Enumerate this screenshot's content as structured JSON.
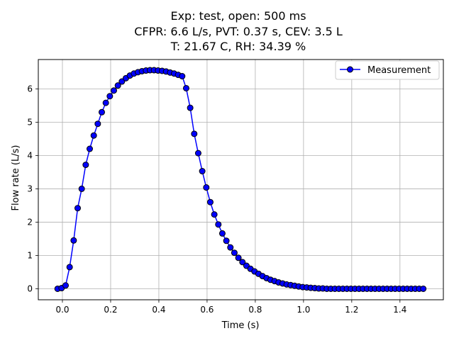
{
  "figure": {
    "title_lines": [
      "Exp: test, open: 500 ms",
      "CFPR: 6.6 L/s, PVT: 0.37 s, CEV: 3.5 L",
      "T: 21.67 C, RH: 34.39 %"
    ]
  },
  "chart_data": {
    "type": "line",
    "xlabel": "Time (s)",
    "ylabel": "Flow rate (L/s)",
    "xlim": [
      -0.1,
      1.58
    ],
    "ylim": [
      -0.33,
      6.88
    ],
    "xticks": [
      0.0,
      0.2,
      0.4,
      0.6,
      0.8,
      1.0,
      1.2,
      1.4
    ],
    "xtick_labels": [
      "0.0",
      "0.2",
      "0.4",
      "0.6",
      "0.8",
      "1.0",
      "1.2",
      "1.4"
    ],
    "yticks": [
      0,
      1,
      2,
      3,
      4,
      5,
      6
    ],
    "ytick_labels": [
      "0",
      "1",
      "2",
      "3",
      "4",
      "5",
      "6"
    ],
    "grid": true,
    "legend_position": "top-right",
    "series": [
      {
        "name": "Measurement",
        "line_color": "#0000ff",
        "marker_face": "#0000ff",
        "marker_edge": "#000000",
        "x": [
          -0.02,
          -0.0033,
          0.0133,
          0.03,
          0.0467,
          0.0633,
          0.08,
          0.0967,
          0.1133,
          0.13,
          0.1467,
          0.1633,
          0.18,
          0.1967,
          0.2133,
          0.23,
          0.2467,
          0.2633,
          0.28,
          0.2967,
          0.3133,
          0.33,
          0.3467,
          0.3633,
          0.38,
          0.3967,
          0.4133,
          0.43,
          0.4467,
          0.4633,
          0.48,
          0.4967,
          0.5133,
          0.53,
          0.5467,
          0.5633,
          0.58,
          0.5967,
          0.6133,
          0.63,
          0.6467,
          0.6633,
          0.68,
          0.6967,
          0.7133,
          0.73,
          0.7467,
          0.7633,
          0.78,
          0.7967,
          0.8133,
          0.83,
          0.8467,
          0.8633,
          0.88,
          0.8967,
          0.9133,
          0.93,
          0.9467,
          0.9633,
          0.98,
          0.9967,
          1.0133,
          1.03,
          1.0467,
          1.0633,
          1.08,
          1.0967,
          1.1133,
          1.13,
          1.1467,
          1.1633,
          1.18,
          1.1967,
          1.2133,
          1.23,
          1.2467,
          1.2633,
          1.28,
          1.2967,
          1.3133,
          1.33,
          1.3467,
          1.3633,
          1.38,
          1.3967,
          1.4133,
          1.43,
          1.4467,
          1.4633,
          1.48,
          1.4967
        ],
        "y": [
          0.0,
          0.02,
          0.1,
          0.65,
          1.45,
          2.42,
          3.0,
          3.72,
          4.2,
          4.6,
          4.95,
          5.3,
          5.58,
          5.78,
          5.95,
          6.1,
          6.22,
          6.32,
          6.4,
          6.46,
          6.5,
          6.53,
          6.55,
          6.56,
          6.56,
          6.55,
          6.54,
          6.52,
          6.49,
          6.46,
          6.42,
          6.38,
          6.02,
          5.43,
          4.65,
          4.07,
          3.53,
          3.04,
          2.6,
          2.23,
          1.93,
          1.66,
          1.44,
          1.24,
          1.08,
          0.93,
          0.8,
          0.69,
          0.6,
          0.52,
          0.45,
          0.38,
          0.32,
          0.27,
          0.23,
          0.19,
          0.16,
          0.13,
          0.11,
          0.09,
          0.07,
          0.05,
          0.04,
          0.03,
          0.02,
          0.01,
          0.01,
          0.0,
          0.0,
          0.0,
          0.0,
          0.0,
          0.0,
          0.0,
          0.0,
          0.0,
          0.0,
          0.0,
          0.0,
          0.0,
          0.0,
          0.0,
          0.0,
          0.0,
          0.0,
          0.0,
          0.0,
          0.0,
          0.0,
          0.0,
          0.0,
          0.0
        ]
      }
    ]
  }
}
